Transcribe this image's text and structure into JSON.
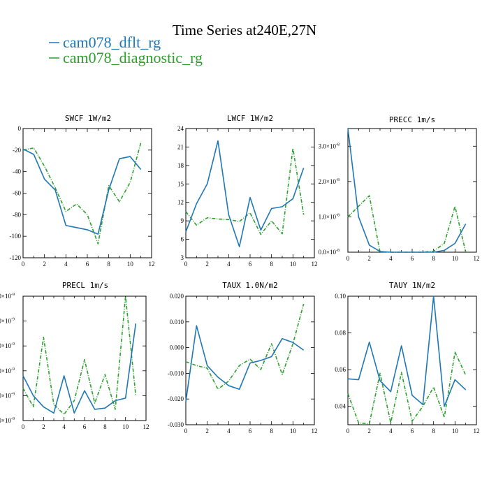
{
  "title": "Time Series at240E,27N",
  "legend": [
    {
      "label": "cam078_dflt_rg",
      "color": "#1f77b4",
      "dash": "none"
    },
    {
      "label": "cam078_diagnostic_rg",
      "color": "#2ca02c",
      "dash": "5 2 1 2"
    }
  ],
  "chart_data": [
    {
      "type": "line",
      "title": "SWCF   1W/m2",
      "xlim": [
        0,
        12
      ],
      "ylim": [
        -120,
        0
      ],
      "xticks": [
        0,
        2,
        4,
        6,
        8,
        10,
        12
      ],
      "yticks": [
        -120,
        -100,
        -80,
        -60,
        -40,
        -20,
        0
      ],
      "ytick_labels": [
        "-120",
        "-100",
        "-80",
        "-60",
        "-40",
        "-20",
        "0"
      ],
      "x": [
        0,
        1,
        2,
        3,
        4,
        5,
        6,
        7,
        8,
        9,
        10,
        11
      ],
      "series": [
        {
          "name": "cam078_dflt_rg",
          "values": [
            -19,
            -24,
            -47,
            -57,
            -90,
            -92,
            -94,
            -98,
            -57,
            -28,
            -26,
            -38
          ]
        },
        {
          "name": "cam078_diagnostic_rg",
          "values": [
            -20,
            -18,
            -35,
            -55,
            -77,
            -70,
            -80,
            -107,
            -53,
            -68,
            -50,
            -13
          ]
        }
      ]
    },
    {
      "type": "line",
      "title": "LWCF   1W/m2",
      "xlim": [
        0,
        12
      ],
      "ylim": [
        3,
        24
      ],
      "xticks": [
        0,
        2,
        4,
        6,
        8,
        10,
        12
      ],
      "yticks": [
        3,
        6,
        9,
        12,
        15,
        18,
        21,
        24
      ],
      "ytick_labels": [
        "3",
        "6",
        "9",
        "12",
        "15",
        "18",
        "21",
        "24"
      ],
      "x": [
        0,
        1,
        2,
        3,
        4,
        5,
        6,
        7,
        8,
        9,
        10,
        11
      ],
      "series": [
        {
          "name": "cam078_dflt_rg",
          "values": [
            7.2,
            11.8,
            15.0,
            22.0,
            10.0,
            4.8,
            12.8,
            7.5,
            11.0,
            11.3,
            12.6,
            17.6
          ]
        },
        {
          "name": "cam078_diagnostic_rg",
          "values": [
            10.5,
            8.3,
            9.5,
            9.3,
            9.2,
            8.9,
            10.3,
            6.8,
            9.0,
            6.9,
            20.8,
            10.0
          ]
        }
      ]
    },
    {
      "type": "line",
      "title": "PRECC   1m/s",
      "xlim": [
        0,
        12
      ],
      "ylim": [
        0,
        3.5e-08
      ],
      "xticks": [
        0,
        2,
        4,
        6,
        8,
        10,
        12
      ],
      "yticks": [
        0,
        1e-08,
        2e-08,
        3e-08
      ],
      "ytick_labels": [
        "0.0×10",
        "1.0×10",
        "2.0×10",
        "3.0×10"
      ],
      "ytick_exponent": "-8",
      "x": [
        0,
        1,
        2,
        3,
        4,
        5,
        6,
        7,
        8,
        9,
        10,
        11
      ],
      "series": [
        {
          "name": "cam078_dflt_rg",
          "values": [
            3.5e-08,
            1e-08,
            2e-09,
            2e-10,
            0,
            0,
            0,
            0,
            0,
            5e-10,
            2.5e-09,
            8e-09
          ]
        },
        {
          "name": "cam078_diagnostic_rg",
          "values": [
            1e-08,
            1.3e-08,
            1.6e-08,
            0,
            0,
            0,
            0,
            0,
            3e-10,
            2.5e-09,
            1.3e-08,
            0
          ]
        }
      ]
    },
    {
      "type": "line",
      "title": "PRECL   1m/s",
      "xlim": [
        0,
        12
      ],
      "ylim": [
        0,
        1e-08
      ],
      "xticks": [
        0,
        2,
        4,
        6,
        8,
        10,
        12
      ],
      "yticks": [
        0,
        2e-09,
        4e-09,
        6e-09,
        8e-09,
        1e-08
      ],
      "ytick_labels": [
        ".0×10",
        ".0×10",
        ".0×10",
        ".0×10",
        ".0×10",
        ".0×10"
      ],
      "ytick_exponent": "-9",
      "x": [
        0,
        1,
        2,
        3,
        4,
        5,
        6,
        7,
        8,
        9,
        10,
        11
      ],
      "series": [
        {
          "name": "cam078_dflt_rg",
          "values": [
            3.6e-09,
            2e-09,
            1.1e-09,
            6e-10,
            3.6e-09,
            6e-10,
            2.4e-09,
            9e-10,
            1e-09,
            1.6e-09,
            1.8e-09,
            7.8e-09
          ]
        },
        {
          "name": "cam078_diagnostic_rg",
          "values": [
            2.6e-09,
            1.1e-09,
            6.7e-09,
            1.3e-09,
            5e-10,
            1.6e-09,
            4.9e-09,
            1.4e-09,
            3.7e-09,
            9e-10,
            1e-08,
            2e-09
          ]
        }
      ]
    },
    {
      "type": "line",
      "title": "TAUX   1.0N/m2",
      "xlim": [
        0,
        12
      ],
      "ylim": [
        -0.03,
        0.02
      ],
      "xticks": [
        0,
        2,
        4,
        6,
        8,
        10,
        12
      ],
      "yticks": [
        -0.03,
        -0.02,
        -0.01,
        0,
        0.01,
        0.02
      ],
      "ytick_labels": [
        "-0.030",
        "-0.020",
        "-0.010",
        "0.000",
        "0.010",
        "0.020"
      ],
      "x": [
        0,
        1,
        2,
        3,
        4,
        5,
        6,
        7,
        8,
        9,
        10,
        11
      ],
      "series": [
        {
          "name": "cam078_dflt_rg",
          "values": [
            -0.021,
            0.0085,
            -0.007,
            -0.0115,
            -0.0148,
            -0.0162,
            -0.006,
            -0.005,
            -0.0035,
            0.0035,
            0.002,
            -0.001
          ]
        },
        {
          "name": "cam078_diagnostic_rg",
          "values": [
            -0.0055,
            -0.007,
            -0.008,
            -0.0162,
            -0.013,
            -0.007,
            -0.0045,
            -0.0085,
            0.0015,
            -0.0105,
            0.0015,
            0.017
          ]
        }
      ]
    },
    {
      "type": "line",
      "title": "TAUY   1N/m2",
      "xlim": [
        0,
        12
      ],
      "ylim": [
        0.03,
        0.1
      ],
      "xticks": [
        0,
        2,
        4,
        6,
        8,
        10,
        12
      ],
      "yticks": [
        0.04,
        0.06,
        0.08,
        0.1
      ],
      "ytick_labels": [
        "0.04",
        "0.06",
        "0.08",
        "0.10"
      ],
      "x": [
        0,
        1,
        2,
        3,
        4,
        5,
        6,
        7,
        8,
        9,
        10,
        11
      ],
      "series": [
        {
          "name": "cam078_dflt_rg",
          "values": [
            0.055,
            0.0545,
            0.075,
            0.054,
            0.048,
            0.073,
            0.046,
            0.041,
            0.1,
            0.04,
            0.0545,
            0.049
          ]
        },
        {
          "name": "cam078_diagnostic_rg",
          "values": [
            0.047,
            0.031,
            0.0305,
            0.058,
            0.031,
            0.0585,
            0.032,
            0.04,
            0.0505,
            0.034,
            0.0695,
            0.057
          ]
        }
      ]
    }
  ]
}
